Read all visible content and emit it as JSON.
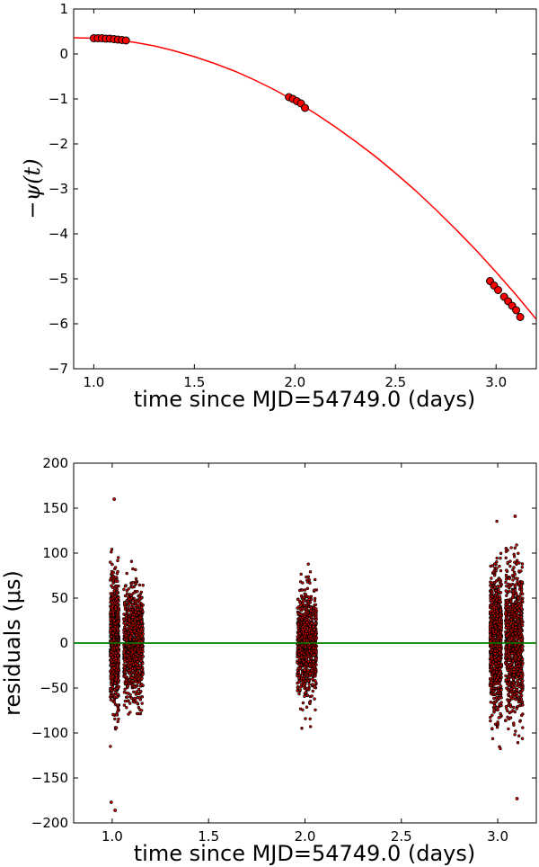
{
  "chart_data": [
    {
      "type": "line",
      "xlabel": "time since MJD=54749.0 (days)",
      "ylabel": "−ψ(t)",
      "xlim": [
        0.9,
        3.2
      ],
      "ylim": [
        -7,
        1
      ],
      "xticks": [
        "1.0",
        "1.5",
        "2.0",
        "2.5",
        "3.0"
      ],
      "yticks": [
        "1",
        "0",
        "−1",
        "−2",
        "−3",
        "−4",
        "−5",
        "−6",
        "−7"
      ],
      "grid": false,
      "series": [
        {
          "kind": "model-curve",
          "color": "#ff0000",
          "x": [
            0.9,
            1.0,
            1.1,
            1.2,
            1.3,
            1.4,
            1.5,
            1.6,
            1.7,
            1.8,
            1.9,
            2.0,
            2.1,
            2.2,
            2.3,
            2.4,
            2.5,
            2.6,
            2.7,
            2.8,
            2.9,
            3.0,
            3.1,
            3.2
          ],
          "y": [
            0.36,
            0.35,
            0.32,
            0.26,
            0.18,
            0.07,
            -0.06,
            -0.21,
            -0.38,
            -0.58,
            -0.8,
            -1.05,
            -1.32,
            -1.62,
            -1.94,
            -2.28,
            -2.65,
            -3.04,
            -3.46,
            -3.9,
            -4.36,
            -4.85,
            -5.36,
            -5.9
          ]
        },
        {
          "kind": "data-points",
          "color": "#ff0000",
          "edge_color": "#000000",
          "x": [
            1.0,
            1.02,
            1.04,
            1.06,
            1.08,
            1.1,
            1.12,
            1.14,
            1.16,
            1.97,
            1.99,
            2.01,
            2.03,
            2.05,
            2.97,
            2.99,
            3.01,
            3.04,
            3.06,
            3.08,
            3.1,
            3.12
          ],
          "y": [
            0.35,
            0.35,
            0.35,
            0.34,
            0.34,
            0.33,
            0.32,
            0.31,
            0.3,
            -0.96,
            -1.0,
            -1.05,
            -1.1,
            -1.2,
            -5.05,
            -5.15,
            -5.25,
            -5.4,
            -5.5,
            -5.6,
            -5.7,
            -5.85
          ]
        }
      ]
    },
    {
      "type": "scatter",
      "xlabel": "time since MJD=54749.0 (days)",
      "ylabel": "residuals (μs)",
      "xlim": [
        0.8,
        3.2
      ],
      "ylim": [
        -200,
        200
      ],
      "xticks": [
        "1.0",
        "1.5",
        "2.0",
        "2.5",
        "3.0"
      ],
      "yticks": [
        "200",
        "150",
        "100",
        "50",
        "0",
        "−50",
        "−100",
        "−150",
        "−200"
      ],
      "grid": false,
      "zero_line_color": "#008000",
      "marker_color": "#cc0000",
      "marker_edge": "#000000",
      "clusters": [
        {
          "x_range": [
            0.99,
            1.035
          ],
          "y_min": -122,
          "y_max": 160,
          "sigma": 33
        },
        {
          "x_range": [
            1.06,
            1.16
          ],
          "y_min": -80,
          "y_max": 95,
          "sigma": 30
        },
        {
          "x_range": [
            1.96,
            2.06
          ],
          "y_min": -102,
          "y_max": 92,
          "sigma": 28
        },
        {
          "x_range": [
            2.96,
            3.02
          ],
          "y_min": -132,
          "y_max": 138,
          "sigma": 38
        },
        {
          "x_range": [
            3.04,
            3.13
          ],
          "y_min": -173,
          "y_max": 141,
          "sigma": 38
        }
      ],
      "outliers": [
        {
          "x": 0.995,
          "y": -177
        },
        {
          "x": 1.015,
          "y": -186
        },
        {
          "x": 1.01,
          "y": 160
        },
        {
          "x": 3.09,
          "y": 141
        },
        {
          "x": 3.1,
          "y": -173
        }
      ]
    }
  ]
}
